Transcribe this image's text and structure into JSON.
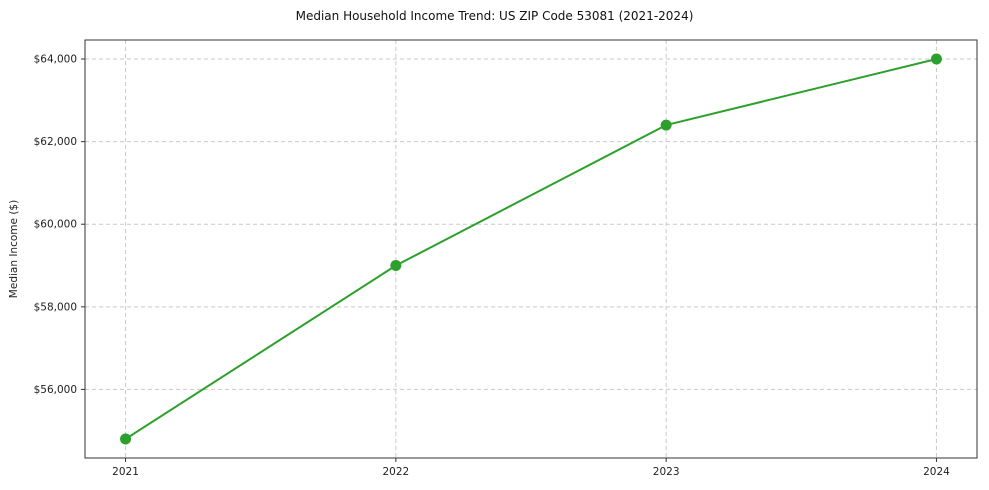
{
  "title": "Median Household Income Trend: US ZIP Code 53081 (2021-2024)",
  "chart_data": {
    "type": "line",
    "title": "Median Household Income Trend: US ZIP Code 53081 (2021-2024)",
    "xlabel": "",
    "ylabel": "Median Income ($)",
    "x": [
      2021,
      2022,
      2023,
      2024
    ],
    "series": [
      {
        "name": "Median Household Income",
        "values": [
          54800,
          59000,
          62400,
          64000
        ]
      }
    ],
    "x_tick_labels": [
      "2021",
      "2022",
      "2023",
      "2024"
    ],
    "y_ticks": [
      56000,
      58000,
      60000,
      62000,
      64000
    ],
    "y_tick_labels": [
      "$56,000",
      "$58,000",
      "$60,000",
      "$62,000",
      "$64,000"
    ],
    "xlim": [
      2020.85,
      2024.15
    ],
    "ylim": [
      54340,
      64460
    ],
    "grid": "dashed",
    "legend": "none",
    "line_color": "#2ca02c",
    "marker": "circle",
    "frame_color": "#333333",
    "grid_color": "#c9c9c9",
    "tick_text_color": "#222222"
  }
}
